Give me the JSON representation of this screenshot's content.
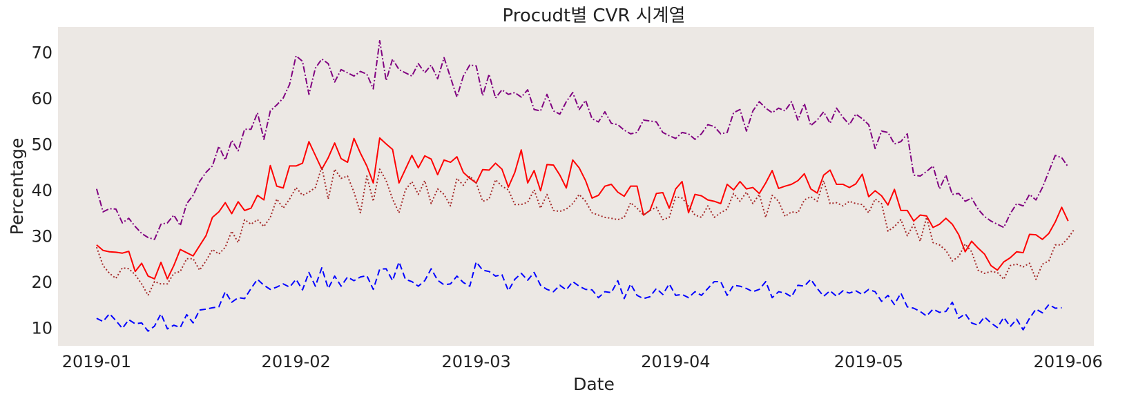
{
  "chart_data": {
    "type": "line",
    "title": "Procudt별 CVR 시계열",
    "xlabel": "Date",
    "ylabel": "Percentage",
    "x_start": "2019-01-01",
    "x_end": "2019-05-31",
    "xlim": [
      "2018-12-26",
      "2019-06-05"
    ],
    "ylim": [
      6,
      75.5
    ],
    "grid": false,
    "legend": "none",
    "plot_background": "#ece8e4",
    "x_ticks": [
      {
        "date": "2019-01-01",
        "label": "2019-01"
      },
      {
        "date": "2019-02-01",
        "label": "2019-02"
      },
      {
        "date": "2019-03-01",
        "label": "2019-03"
      },
      {
        "date": "2019-04-01",
        "label": "2019-04"
      },
      {
        "date": "2019-05-01",
        "label": "2019-05"
      },
      {
        "date": "2019-06-01",
        "label": "2019-06"
      }
    ],
    "y_ticks": [
      10,
      20,
      30,
      40,
      50,
      60,
      70
    ],
    "series": [
      {
        "color": "#800080",
        "style": "dashdot",
        "values": [
          40.2,
          35.2,
          35.9,
          35.8,
          32.8,
          33.8,
          32.0,
          30.5,
          29.6,
          29.2,
          32.5,
          32.8,
          34.5,
          32.2,
          37.0,
          38.8,
          41.8,
          43.8,
          45.2,
          49.5,
          46.5,
          50.8,
          48.5,
          53.2,
          53.2,
          56.8,
          51.0,
          57.2,
          58.5,
          60.0,
          63.0,
          69.2,
          68.0,
          60.8,
          66.5,
          68.5,
          67.5,
          63.5,
          66.2,
          65.5,
          64.8,
          65.8,
          65.2,
          62.0,
          72.5,
          63.8,
          68.5,
          66.2,
          65.5,
          64.8,
          67.5,
          65.5,
          67.2,
          64.2,
          68.8,
          64.5,
          60.2,
          64.8,
          67.2,
          67.0,
          60.5,
          65.2,
          60.0,
          61.8,
          60.8,
          61.2,
          60.2,
          61.8,
          57.5,
          57.2,
          60.8,
          57.2,
          56.5,
          59.2,
          61.2,
          57.5,
          59.5,
          55.5,
          54.8,
          57.0,
          54.5,
          54.2,
          53.0,
          52.2,
          52.5,
          55.2,
          55.0,
          54.8,
          52.5,
          51.8,
          51.2,
          52.5,
          52.2,
          51.0,
          52.2,
          54.2,
          53.8,
          52.2,
          52.5,
          56.8,
          57.5,
          52.8,
          57.2,
          59.2,
          57.8,
          56.8,
          57.8,
          57.2,
          59.2,
          55.2,
          58.8,
          54.0,
          55.2,
          57.0,
          54.5,
          57.8,
          55.8,
          54.2,
          56.5,
          55.5,
          54.2,
          49.0,
          52.8,
          52.5,
          50.0,
          50.5,
          52.2,
          43.2,
          43.0,
          44.0,
          45.2,
          40.2,
          43.2,
          39.0,
          39.2,
          37.5,
          38.2,
          35.8,
          34.2,
          33.2,
          32.5,
          31.8,
          34.8,
          37.0,
          36.5,
          39.0,
          37.8,
          40.5,
          44.0,
          47.5,
          47.0,
          45.0
        ]
      },
      {
        "color": "#ff0000",
        "style": "solid",
        "values": [
          28.0,
          26.8,
          26.5,
          26.4,
          26.2,
          26.6,
          22.2,
          24.0,
          21.2,
          20.6,
          24.2,
          20.6,
          23.5,
          27.0,
          26.3,
          25.6,
          27.8,
          30.0,
          34.0,
          35.2,
          37.2,
          34.8,
          37.4,
          35.5,
          36.0,
          38.8,
          37.8,
          45.3,
          40.8,
          40.4,
          45.2,
          45.2,
          45.8,
          50.5,
          47.5,
          44.5,
          47.0,
          50.2,
          46.8,
          46.0,
          51.2,
          48.0,
          45.2,
          41.5,
          51.3,
          50.0,
          48.8,
          41.5,
          44.5,
          47.5,
          44.8,
          47.4,
          46.7,
          43.3,
          46.5,
          46.0,
          47.2,
          43.8,
          42.5,
          41.5,
          44.4,
          44.3,
          45.8,
          44.5,
          40.6,
          43.8,
          48.7,
          41.5,
          44.2,
          39.8,
          45.5,
          45.4,
          43.2,
          40.4,
          46.5,
          44.8,
          42.0,
          38.2,
          38.8,
          40.8,
          41.2,
          39.5,
          38.6,
          40.8,
          40.8,
          34.5,
          35.5,
          39.2,
          39.4,
          36.0,
          40.2,
          41.8,
          35.0,
          39.0,
          38.7,
          37.8,
          37.5,
          37.0,
          41.2,
          40.0,
          41.8,
          40.2,
          40.5,
          39.2,
          41.5,
          44.2,
          40.3,
          40.8,
          41.2,
          42.0,
          43.5,
          40.2,
          39.3,
          43.2,
          44.3,
          41.2,
          41.2,
          40.5,
          41.3,
          43.4,
          38.5,
          39.8,
          38.7,
          36.7,
          40.1,
          35.5,
          35.5,
          33.2,
          34.5,
          34.3,
          31.8,
          32.5,
          33.8,
          32.5,
          30.2,
          26.5,
          28.8,
          27.3,
          26.0,
          23.5,
          22.5,
          24.3,
          25.2,
          26.5,
          26.3,
          30.3,
          30.2,
          29.2,
          30.5,
          33.0,
          36.2,
          33.2
        ]
      },
      {
        "color": "#a52a2a",
        "style": "dotted",
        "values": [
          27.5,
          23.5,
          21.8,
          20.7,
          23.0,
          22.8,
          21.5,
          19.5,
          17.0,
          20.0,
          19.5,
          19.5,
          21.8,
          22.2,
          25.0,
          25.0,
          22.5,
          24.5,
          27.0,
          26.0,
          27.5,
          31.0,
          28.5,
          33.5,
          32.5,
          33.5,
          32.0,
          34.0,
          38.0,
          36.0,
          38.0,
          40.5,
          38.8,
          39.5,
          40.5,
          45.0,
          38.0,
          44.5,
          42.5,
          43.0,
          39.5,
          35.0,
          43.0,
          37.5,
          44.5,
          42.0,
          38.0,
          35.0,
          40.0,
          41.8,
          39.0,
          42.0,
          37.0,
          40.2,
          39.0,
          36.5,
          42.5,
          41.0,
          43.0,
          41.5,
          37.5,
          38.0,
          42.2,
          40.8,
          40.0,
          36.8,
          36.8,
          37.3,
          40.0,
          36.0,
          39.0,
          35.5,
          35.3,
          35.8,
          37.0,
          39.0,
          37.5,
          35.0,
          34.5,
          34.0,
          33.8,
          33.5,
          34.0,
          37.2,
          36.0,
          34.5,
          35.5,
          36.2,
          33.5,
          34.0,
          38.5,
          38.2,
          36.5,
          34.5,
          34.0,
          36.5,
          34.0,
          35.0,
          35.8,
          39.2,
          37.5,
          39.5,
          37.0,
          39.0,
          34.0,
          38.8,
          37.5,
          34.2,
          35.2,
          35.0,
          37.8,
          38.5,
          37.5,
          42.0,
          37.0,
          37.2,
          36.5,
          37.5,
          37.0,
          36.8,
          35.0,
          38.0,
          37.0,
          31.0,
          32.0,
          33.5,
          30.0,
          32.5,
          28.8,
          34.0,
          28.5,
          28.0,
          26.8,
          24.5,
          25.5,
          28.2,
          26.5,
          22.5,
          21.8,
          22.2,
          22.0,
          20.5,
          23.5,
          23.8,
          23.2,
          24.0,
          20.5,
          23.8,
          24.5,
          28.0,
          28.0,
          29.5,
          31.5
        ]
      },
      {
        "color": "#0000ff",
        "style": "dashed",
        "values": [
          12.0,
          11.3,
          13.0,
          11.5,
          9.8,
          11.7,
          10.8,
          11.0,
          9.2,
          10.3,
          13.0,
          9.7,
          10.5,
          10.0,
          12.8,
          11.0,
          13.8,
          14.0,
          14.3,
          14.5,
          17.8,
          15.5,
          16.5,
          16.3,
          18.5,
          20.5,
          19.2,
          18.3,
          18.8,
          19.5,
          18.8,
          20.5,
          18.2,
          22.0,
          19.0,
          23.0,
          18.5,
          21.2,
          19.0,
          21.0,
          20.2,
          21.0,
          21.3,
          18.3,
          22.7,
          22.8,
          20.2,
          24.3,
          20.5,
          20.0,
          19.0,
          20.2,
          22.8,
          20.3,
          19.3,
          19.5,
          21.2,
          19.8,
          19.0,
          24.3,
          22.5,
          22.2,
          21.2,
          21.5,
          18.0,
          20.5,
          21.8,
          20.3,
          22.0,
          19.2,
          18.3,
          17.8,
          19.2,
          18.2,
          20.0,
          19.0,
          18.3,
          18.2,
          16.5,
          17.8,
          17.6,
          20.2,
          16.3,
          19.5,
          17.0,
          16.3,
          16.7,
          18.5,
          17.2,
          19.5,
          17.0,
          17.2,
          16.5,
          17.8,
          17.0,
          18.5,
          20.0,
          20.0,
          17.0,
          19.2,
          19.0,
          18.5,
          17.8,
          18.3,
          20.0,
          16.5,
          17.8,
          17.5,
          16.7,
          19.2,
          19.0,
          20.5,
          18.5,
          16.8,
          18.0,
          16.8,
          18.0,
          17.5,
          18.0,
          17.2,
          18.3,
          17.8,
          15.7,
          17.0,
          15.0,
          17.5,
          14.5,
          14.2,
          13.5,
          12.5,
          14.0,
          13.3,
          13.5,
          15.5,
          12.0,
          13.0,
          11.0,
          10.5,
          12.3,
          11.0,
          10.0,
          12.2,
          10.2,
          11.8,
          9.5,
          12.0,
          14.0,
          13.2,
          15.0,
          14.2,
          14.3
        ]
      }
    ]
  }
}
